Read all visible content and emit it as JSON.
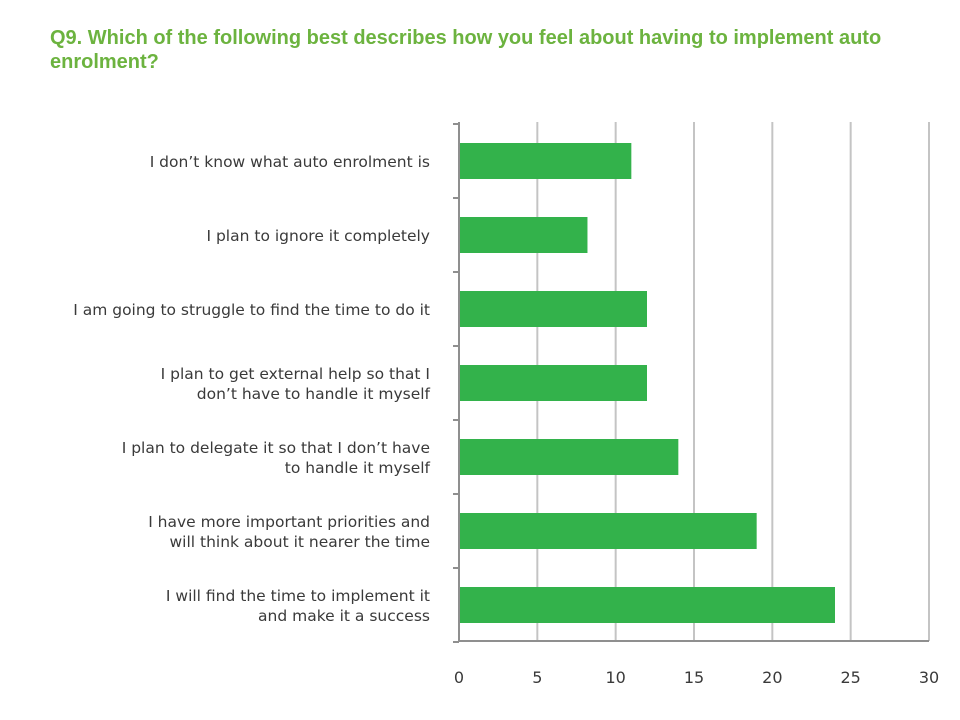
{
  "question": {
    "title": "Q9. Which of the following best describes how you feel about having to implement auto enrolment?"
  },
  "colors": {
    "title": "#6cb33f",
    "bar": "#33b24b",
    "grid": "#c4c4c4",
    "axis": "#8f8f8f",
    "text": "#3a3a3a"
  },
  "chart_data": {
    "type": "bar",
    "orientation": "horizontal",
    "categories": [
      [
        "I don’t know what auto enrolment is"
      ],
      [
        "I plan to ignore it completely"
      ],
      [
        "I am going to struggle to find the time to do it"
      ],
      [
        "I plan to get external help so that I",
        "don’t have to handle it myself"
      ],
      [
        "I plan to delegate it so that I don’t have",
        "to handle it myself"
      ],
      [
        "I have more important priorities and",
        "will think about it nearer the time"
      ],
      [
        "I will find the time to implement it",
        "and make it a success"
      ]
    ],
    "values": [
      11,
      8.2,
      12,
      12,
      14,
      19,
      24
    ],
    "xlim": [
      0,
      30
    ],
    "xticks": [
      0,
      5,
      10,
      15,
      20,
      25,
      30
    ],
    "grid": true,
    "legend": "none"
  }
}
